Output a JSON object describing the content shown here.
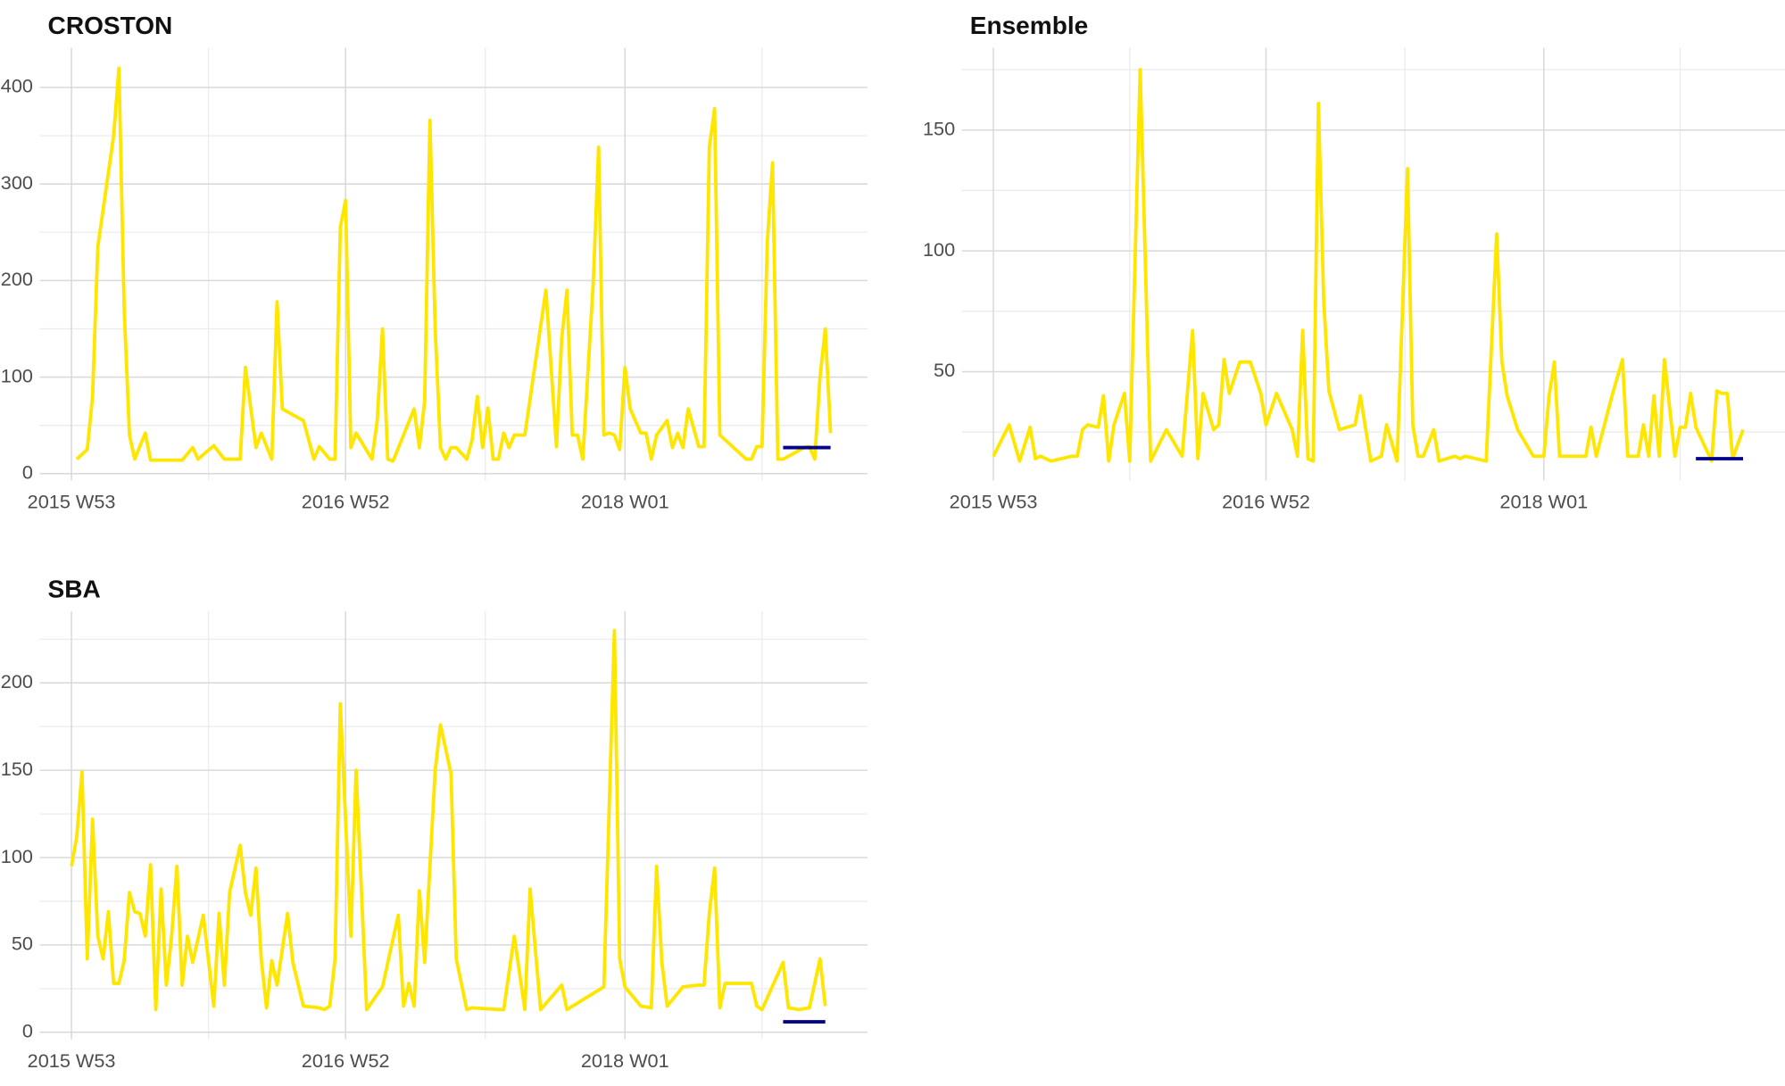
{
  "chart_data": [
    {
      "type": "line",
      "title": "CROSTON",
      "xlim": [
        -6,
        151
      ],
      "ylim": [
        -7,
        441
      ],
      "xticks": [
        {
          "value": 0,
          "label": "2015 W53"
        },
        {
          "value": 52,
          "label": "2016 W52"
        },
        {
          "value": 105,
          "label": "2018 W01"
        }
      ],
      "yticks": [
        0,
        100,
        200,
        300,
        400
      ],
      "grid": true,
      "series": [
        {
          "color": "#ffe600",
          "x": [
            1,
            3,
            4,
            5,
            8,
            9,
            10,
            11,
            12,
            14,
            15,
            21,
            23,
            24,
            27,
            29,
            32,
            33,
            35,
            36,
            38,
            39,
            40,
            44,
            46,
            47,
            49,
            50,
            51,
            52,
            53,
            54,
            57,
            58,
            59,
            60,
            61,
            65,
            66,
            67,
            68,
            69,
            70,
            71,
            72,
            73,
            75,
            76,
            77,
            78,
            79,
            80,
            81,
            82,
            83,
            84,
            86,
            90,
            92,
            93,
            94,
            95,
            96,
            97,
            99,
            100,
            101,
            102,
            103,
            104,
            105,
            106,
            108,
            109,
            110,
            111,
            113,
            114,
            115,
            116,
            117,
            119,
            120,
            121,
            122,
            123,
            128,
            129,
            130,
            131,
            132,
            133,
            134,
            135,
            139,
            140,
            141,
            142,
            143,
            144
          ],
          "values": [
            15,
            25,
            80,
            235,
            350,
            420,
            170,
            40,
            15,
            42,
            14,
            14,
            27,
            15,
            29,
            15,
            15,
            110,
            27,
            42,
            15,
            178,
            67,
            55,
            15,
            28,
            15,
            15,
            255,
            283,
            27,
            42,
            15,
            55,
            150,
            15,
            13,
            67,
            27,
            75,
            366,
            150,
            27,
            15,
            27,
            27,
            15,
            35,
            80,
            27,
            68,
            15,
            15,
            42,
            27,
            40,
            40,
            190,
            28,
            140,
            190,
            40,
            40,
            15,
            200,
            338,
            40,
            42,
            40,
            25,
            110,
            67,
            42,
            42,
            15,
            40,
            55,
            27,
            42,
            27,
            67,
            28,
            28,
            338,
            378,
            40,
            15,
            15,
            28,
            28,
            240,
            322,
            15,
            15,
            27,
            28,
            15,
            100,
            150,
            42
          ]
        },
        {
          "color": "#00008b",
          "x": [
            135,
            144
          ],
          "values": [
            27,
            27
          ]
        }
      ]
    },
    {
      "type": "line",
      "title": "Ensemble",
      "xlim": [
        -6,
        151
      ],
      "ylim": [
        5,
        184
      ],
      "xticks": [
        {
          "value": 0,
          "label": "2015 W53"
        },
        {
          "value": 52,
          "label": "2016 W52"
        },
        {
          "value": 105,
          "label": "2018 W01"
        }
      ],
      "yticks": [
        50,
        100,
        150
      ],
      "grid": true,
      "series": [
        {
          "color": "#ffe600",
          "x": [
            0,
            3,
            5,
            7,
            8,
            9,
            11,
            15,
            16,
            17,
            18,
            20,
            21,
            22,
            23,
            25,
            26,
            28,
            30,
            33,
            36,
            38,
            39,
            40,
            42,
            43,
            44,
            45,
            47,
            49,
            51,
            52,
            54,
            57,
            58,
            59,
            60,
            61,
            62,
            63,
            64,
            66,
            69,
            70,
            72,
            74,
            75,
            77,
            79,
            80,
            81,
            82,
            84,
            85,
            88,
            89,
            90,
            94,
            96,
            97,
            98,
            100,
            103,
            105,
            106,
            107,
            108,
            112,
            113,
            114,
            115,
            118,
            120,
            121,
            123,
            124,
            125,
            126,
            127,
            128,
            130,
            131,
            132,
            133,
            134,
            137,
            138,
            139,
            140,
            141,
            143
          ],
          "values": [
            15,
            28,
            13,
            27,
            14,
            15,
            13,
            15,
            15,
            26,
            28,
            27,
            40,
            13,
            28,
            41,
            13,
            175,
            13,
            26,
            15,
            67,
            14,
            41,
            26,
            28,
            55,
            41,
            54,
            54,
            41,
            28,
            41,
            26,
            15,
            67,
            14,
            13,
            161,
            80,
            42,
            26,
            28,
            40,
            13,
            15,
            28,
            13,
            134,
            28,
            15,
            15,
            26,
            13,
            15,
            14,
            15,
            13,
            107,
            54,
            40,
            26,
            15,
            15,
            40,
            54,
            15,
            15,
            15,
            27,
            15,
            40,
            55,
            15,
            15,
            28,
            15,
            40,
            15,
            55,
            15,
            27,
            27,
            41,
            27,
            13,
            42,
            41,
            41,
            14,
            26
          ]
        },
        {
          "color": "#00008b",
          "x": [
            134,
            143
          ],
          "values": [
            14,
            14
          ]
        }
      ]
    },
    {
      "type": "line",
      "title": "SBA",
      "xlim": [
        -6,
        151
      ],
      "ylim": [
        -4,
        241
      ],
      "xticks": [
        {
          "value": 0,
          "label": "2015 W53"
        },
        {
          "value": 52,
          "label": "2016 W52"
        },
        {
          "value": 105,
          "label": "2018 W01"
        }
      ],
      "yticks": [
        0,
        50,
        100,
        150,
        200
      ],
      "grid": true,
      "series": [
        {
          "color": "#ffe600",
          "x": [
            0,
            1,
            2,
            3,
            4,
            5,
            6,
            7,
            8,
            9,
            10,
            11,
            12,
            13,
            14,
            15,
            16,
            17,
            18,
            19,
            20,
            21,
            22,
            23,
            25,
            27,
            28,
            29,
            30,
            32,
            33,
            34,
            35,
            36,
            37,
            38,
            39,
            41,
            42,
            44,
            47,
            48,
            49,
            50,
            51,
            53,
            54,
            56,
            59,
            62,
            63,
            64,
            65,
            66,
            67,
            69,
            70,
            72,
            73,
            75,
            76,
            81,
            82,
            84,
            86,
            87,
            89,
            93,
            94,
            101,
            103,
            104,
            105,
            108,
            110,
            111,
            112,
            113,
            116,
            119,
            120,
            121,
            122,
            123,
            124,
            129,
            130,
            131,
            135,
            136,
            138,
            140,
            142,
            143
          ],
          "values": [
            95,
            112,
            149,
            42,
            122,
            55,
            42,
            69,
            28,
            28,
            41,
            80,
            69,
            68,
            55,
            96,
            13,
            82,
            27,
            55,
            95,
            27,
            55,
            40,
            67,
            15,
            68,
            27,
            80,
            107,
            80,
            67,
            94,
            42,
            14,
            41,
            27,
            68,
            40,
            15,
            14,
            13,
            15,
            42,
            188,
            55,
            150,
            13,
            26,
            67,
            15,
            28,
            15,
            81,
            40,
            150,
            176,
            148,
            42,
            13,
            14,
            13,
            13,
            55,
            13,
            82,
            13,
            27,
            13,
            26,
            230,
            42,
            26,
            15,
            14,
            95,
            40,
            15,
            26,
            27,
            27,
            68,
            94,
            14,
            28,
            28,
            15,
            13,
            40,
            14,
            13,
            14,
            42,
            15
          ]
        },
        {
          "color": "#00008b",
          "x": [
            135,
            143
          ],
          "values": [
            6,
            6
          ]
        }
      ]
    }
  ]
}
